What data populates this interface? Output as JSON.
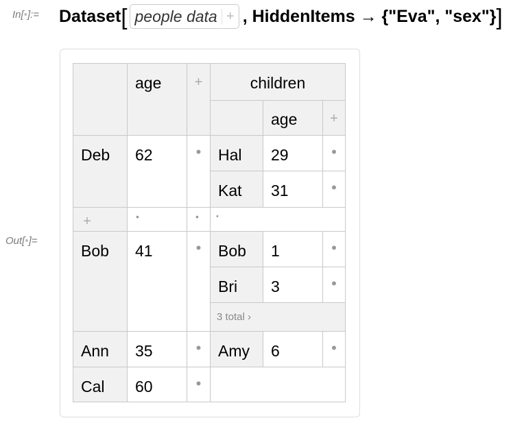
{
  "input": {
    "label_prefix": "In[",
    "label_dot": "•",
    "label_suffix": "]:=",
    "function_name": "Dataset",
    "open_bracket": "[",
    "chip_text": "people data",
    "chip_plus": "+",
    "rest": ", HiddenItems → {\"Eva\", \"sex\"}",
    "close_bracket": "]"
  },
  "output": {
    "label_prefix": "Out[",
    "label_dot": "•",
    "label_suffix": "]="
  },
  "dataset": {
    "header": {
      "age": "age",
      "plus": "+",
      "children": "children",
      "child_age": "age",
      "child_plus": "+"
    },
    "rows": {
      "deb": {
        "name": "Deb",
        "age": "62",
        "dot": "•",
        "children": [
          {
            "name": "Hal",
            "age": "29",
            "dot": "•"
          },
          {
            "name": "Kat",
            "age": "31",
            "dot": "•"
          }
        ]
      },
      "hidden": {
        "plus": "+",
        "dot1": "•",
        "dot2": "•",
        "dot3": "•"
      },
      "bob": {
        "name": "Bob",
        "age": "41",
        "dot": "•",
        "children": [
          {
            "name": "Bob",
            "age": "1",
            "dot": "•"
          },
          {
            "name": "Bri",
            "age": "3",
            "dot": "•"
          }
        ],
        "more": "3 total ›"
      },
      "ann": {
        "name": "Ann",
        "age": "35",
        "dot": "•",
        "children": [
          {
            "name": "Amy",
            "age": "6",
            "dot": "•"
          }
        ]
      },
      "cal": {
        "name": "Cal",
        "age": "60",
        "dot": "•"
      }
    }
  }
}
